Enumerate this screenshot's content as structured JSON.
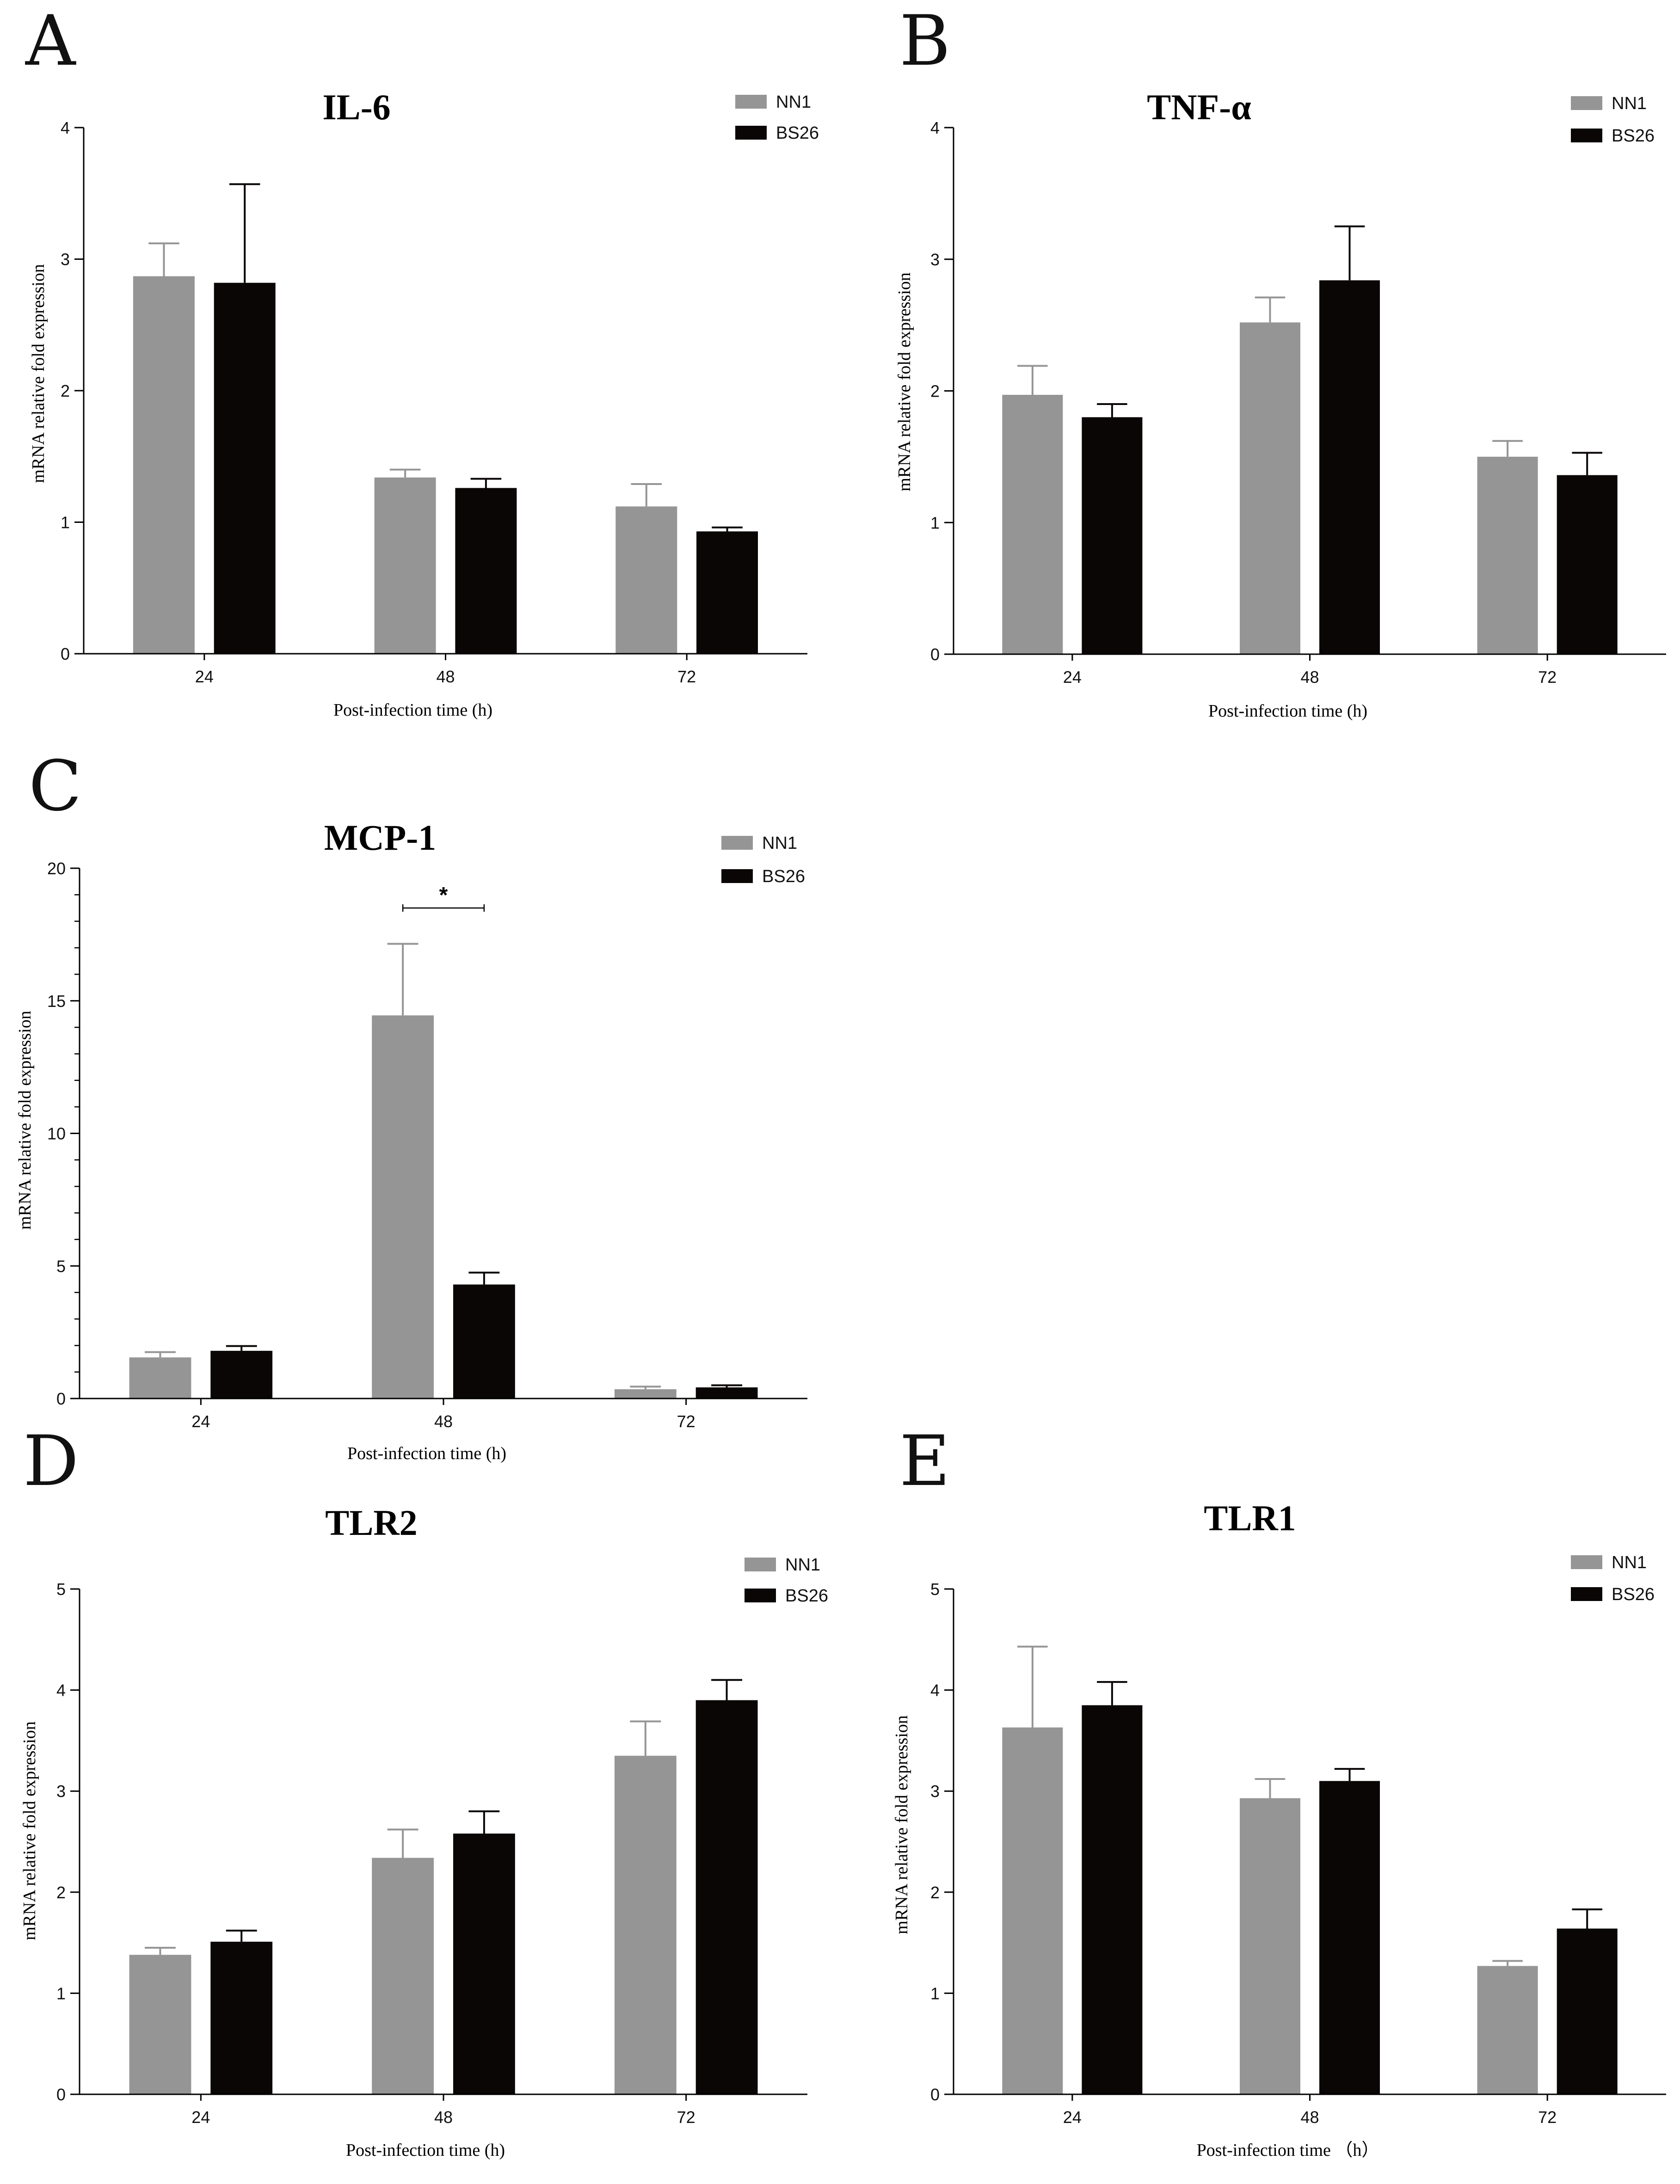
{
  "colors": {
    "NN1": "#959595",
    "BS26": "#0a0606",
    "axis": "#000000"
  },
  "panels": [
    {
      "letter": "A",
      "chart_data": {
        "type": "bar",
        "title": "IL-6",
        "xlabel": "Post-infection time (h)",
        "ylabel": "mRNA relative fold expression",
        "categories": [
          "24",
          "48",
          "72"
        ],
        "ylim": [
          0,
          4
        ],
        "yticks": [
          0,
          1,
          2,
          3,
          4
        ],
        "minor_ticks": false,
        "legend_position": "top-right",
        "series": [
          {
            "name": "NN1",
            "values": [
              2.87,
              1.34,
              1.12
            ],
            "errors": [
              0.25,
              0.06,
              0.17
            ]
          },
          {
            "name": "BS26",
            "values": [
              2.82,
              1.26,
              0.93
            ],
            "errors": [
              0.75,
              0.07,
              0.03
            ]
          }
        ]
      }
    },
    {
      "letter": "B",
      "chart_data": {
        "type": "bar",
        "title": "TNF-α",
        "xlabel": "Post-infection time (h)",
        "ylabel": "mRNA relative fold expression",
        "categories": [
          "24",
          "48",
          "72"
        ],
        "ylim": [
          0,
          4
        ],
        "yticks": [
          0,
          1,
          2,
          3,
          4
        ],
        "minor_ticks": false,
        "legend_position": "top-right",
        "series": [
          {
            "name": "NN1",
            "values": [
              1.97,
              2.52,
              1.5
            ],
            "errors": [
              0.22,
              0.19,
              0.12
            ]
          },
          {
            "name": "BS26",
            "values": [
              1.8,
              2.84,
              1.36
            ],
            "errors": [
              0.1,
              0.41,
              0.17
            ]
          }
        ]
      }
    },
    {
      "letter": "C",
      "chart_data": {
        "type": "bar",
        "title": "MCP-1",
        "xlabel": "Post-infection time (h)",
        "ylabel": "mRNA relative fold expression",
        "categories": [
          "24",
          "48",
          "72"
        ],
        "ylim": [
          0,
          20
        ],
        "yticks": [
          0,
          5,
          10,
          15,
          20
        ],
        "minor_ticks": true,
        "legend_position": "top-right",
        "series": [
          {
            "name": "NN1",
            "values": [
              1.55,
              14.45,
              0.35
            ],
            "errors": [
              0.2,
              2.7,
              0.1
            ]
          },
          {
            "name": "BS26",
            "values": [
              1.8,
              4.3,
              0.42
            ],
            "errors": [
              0.18,
              0.45,
              0.08
            ]
          }
        ],
        "annotations": [
          {
            "text": "*",
            "category": "48",
            "y": 18.5
          }
        ]
      }
    },
    {
      "letter": "D",
      "chart_data": {
        "type": "bar",
        "title": "TLR2",
        "xlabel": "Post-infection time (h)",
        "ylabel": "mRNA relative fold expression",
        "categories": [
          "24",
          "48",
          "72"
        ],
        "ylim": [
          0,
          5
        ],
        "yticks": [
          0,
          1,
          2,
          3,
          4,
          5
        ],
        "minor_ticks": false,
        "legend_position": "top-right",
        "series": [
          {
            "name": "NN1",
            "values": [
              1.38,
              2.34,
              3.35
            ],
            "errors": [
              0.07,
              0.28,
              0.34
            ]
          },
          {
            "name": "BS26",
            "values": [
              1.51,
              2.58,
              3.9
            ],
            "errors": [
              0.11,
              0.22,
              0.2
            ]
          }
        ]
      }
    },
    {
      "letter": "E",
      "chart_data": {
        "type": "bar",
        "title": "TLR1",
        "xlabel": "Post-infection time （h）",
        "ylabel": "mRNA relative fold expression",
        "categories": [
          "24",
          "48",
          "72"
        ],
        "ylim": [
          0,
          5
        ],
        "yticks": [
          0,
          1,
          2,
          3,
          4,
          5
        ],
        "minor_ticks": false,
        "legend_position": "top-right",
        "series": [
          {
            "name": "NN1",
            "values": [
              3.63,
              2.93,
              1.27
            ],
            "errors": [
              0.8,
              0.19,
              0.05
            ]
          },
          {
            "name": "BS26",
            "values": [
              3.85,
              3.1,
              1.64
            ],
            "errors": [
              0.23,
              0.12,
              0.19
            ]
          }
        ]
      }
    }
  ]
}
